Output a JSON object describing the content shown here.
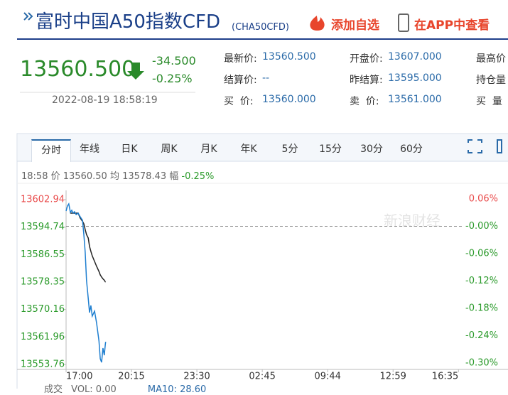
{
  "header": {
    "title": "富时中国A50指数CFD",
    "code": "(CHA50CFD)",
    "add_watch": "添加自选",
    "open_app": "在APP中查看"
  },
  "quote": {
    "price": "13560.500",
    "change": "-34.500",
    "change_pct": "-0.25%",
    "datetime": "2022-08-19 18:58:19"
  },
  "fields": [
    [
      {
        "label": "最新价:",
        "value": "13560.500"
      },
      {
        "label": "开盘价:",
        "value": "13607.000"
      },
      {
        "label": "最高价"
      }
    ],
    [
      {
        "label": "结算价:",
        "value": "--"
      },
      {
        "label": "昨结算:",
        "value": "13595.000"
      },
      {
        "label": "持仓量"
      }
    ],
    [
      {
        "label": "买  价:",
        "value": "13560.000"
      },
      {
        "label": "卖  价:",
        "value": "13561.000"
      },
      {
        "label": "买  量"
      }
    ]
  ],
  "tabs": [
    "分时",
    "年线",
    "日K",
    "周K",
    "月K",
    "年K",
    "5分",
    "15分",
    "30分",
    "60分"
  ],
  "info": {
    "time": "18:58",
    "price_label": "价",
    "price": "13560.50",
    "avg_label": "均",
    "avg": "13578.43",
    "pct_label": "幅",
    "pct": "-0.25%"
  },
  "footer": {
    "volume_label": "成交",
    "vol": "VOL: 0.00",
    "ma": "MA10: 28.60"
  },
  "chart_data": {
    "type": "line",
    "watermark": "新浪财经",
    "x": [
      0,
      4,
      8,
      13,
      17,
      21,
      25,
      30,
      36,
      42,
      49,
      53,
      57,
      61,
      66,
      70,
      74,
      78,
      85,
      91,
      98,
      102,
      106,
      110,
      114,
      117,
      118
    ],
    "series": [
      {
        "name": "价",
        "color": "#1f7fd0",
        "values": [
          13599.55,
          13601.03,
          13601.67,
          13599.12,
          13599.76,
          13598.91,
          13599.34,
          13598.49,
          13598.91,
          13597.85,
          13596.79,
          13592.55,
          13587.25,
          13578.77,
          13573.47,
          13569.23,
          13571.35,
          13568.18,
          13569.66,
          13566.06,
          13560.76,
          13555.46,
          13554.4,
          13558.64,
          13556.52,
          13559.7,
          13560.5
        ]
      },
      {
        "name": "均",
        "color": "#222222",
        "values": [
          null,
          null,
          null,
          13598.91,
          13598.91,
          13598.91,
          13598.91,
          13598.91,
          13598.91,
          13597.5,
          13596.5,
          13595.73,
          13594.0,
          13592.5,
          13591.49,
          13589.0,
          13587.5,
          13586.19,
          13584.5,
          13583.01,
          13581.5,
          13580.5,
          13579.83,
          13579.3,
          13578.9,
          13578.43,
          13578.43
        ]
      }
    ],
    "reference_line": 13595.0,
    "up_color": "#e94b4b",
    "down_color": "#2a9a2a",
    "xlim": [
      0,
      1180
    ],
    "xticks": [
      {
        "value": 0,
        "label": "17:00"
      },
      {
        "value": 195,
        "label": "20:15"
      },
      {
        "value": 390,
        "label": "23:30"
      },
      {
        "value": 585,
        "label": "02:45"
      },
      {
        "value": 780,
        "label": "09:44"
      },
      {
        "value": 975,
        "label": "12:59"
      },
      {
        "value": 1170,
        "label": "16:35"
      }
    ],
    "ylim": [
      13553.76,
      13602.94
    ],
    "yticks": [
      13602.94,
      13594.74,
      13586.55,
      13578.35,
      13570.16,
      13561.96,
      13553.76
    ],
    "y2lim": [
      -0.3033,
      0.0584
    ],
    "y2ticks": [
      {
        "value": 0.06,
        "label": "0.06%"
      },
      {
        "value": -0.0,
        "label": "-0.00%"
      },
      {
        "value": -0.06,
        "label": "-0.06%"
      },
      {
        "value": -0.12,
        "label": "-0.12%"
      },
      {
        "value": -0.18,
        "label": "-0.18%"
      },
      {
        "value": -0.24,
        "label": "-0.24%"
      },
      {
        "value": -0.3,
        "label": "-0.30%"
      }
    ]
  }
}
